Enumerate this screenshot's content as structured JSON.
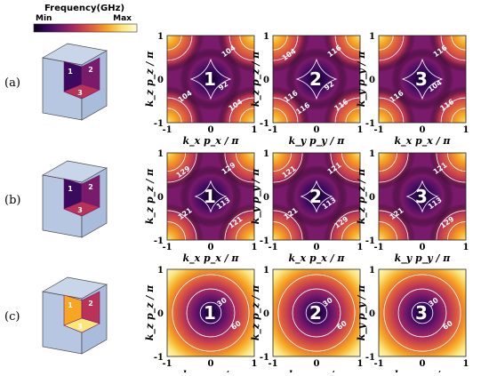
{
  "colorbar": {
    "title": "Frequency(GHz)",
    "min_label": "Min",
    "max_label": "Max",
    "stops": [
      "#0d0021",
      "#3a0a5e",
      "#7a1a6a",
      "#b83357",
      "#e2623b",
      "#f6a623",
      "#fbe67a",
      "#fffbd8"
    ]
  },
  "ticks": {
    "min": "-1",
    "mid": "0",
    "max": "1"
  },
  "rows": [
    {
      "label": "(a)",
      "contour_labels": [
        [
          "104",
          "92",
          "104",
          "104"
        ],
        [
          "116",
          "92",
          "116",
          "116",
          "104",
          "116"
        ],
        [
          "116",
          "104",
          "116",
          "116"
        ]
      ],
      "contour_levels": [
        0.45,
        0.62,
        0.78
      ],
      "pattern": "corners-bright",
      "axes": [
        {
          "x": "k_x p_x / π",
          "y": "k_z p_z / π"
        },
        {
          "x": "k_y p_y / π",
          "y": "k_z p_z / π"
        },
        {
          "x": "k_x p_x / π",
          "y": "k_y p_y / π"
        }
      ],
      "panel_ids": [
        "1",
        "2",
        "3"
      ],
      "cube_ids": [
        "1",
        "2",
        "3"
      ]
    },
    {
      "label": "(b)",
      "contour_labels": [
        [
          "129",
          "113",
          "121",
          "121",
          "129"
        ],
        [
          "121",
          "113",
          "121",
          "129",
          "121"
        ],
        [
          "121",
          "113",
          "121",
          "129"
        ]
      ],
      "contour_levels": [
        0.35,
        0.55,
        0.72
      ],
      "pattern": "corners-bright",
      "axes": [
        {
          "x": "k_x p_x / π",
          "y": "k_z p_z / π"
        },
        {
          "x": "k_x p_x / π",
          "y": "k_y p_y / π"
        },
        {
          "x": "k_y p_y / π",
          "y": "k_z p_z / π"
        }
      ],
      "panel_ids": [
        "1",
        "2",
        "3"
      ],
      "cube_ids": [
        "1",
        "2",
        "3"
      ]
    },
    {
      "label": "(c)",
      "contour_labels": [
        [
          "30",
          "60"
        ],
        [
          "30",
          "60"
        ],
        [
          "30",
          "60"
        ]
      ],
      "contour_levels": [
        0.22,
        0.5,
        0.8
      ],
      "pattern": "center-dark",
      "axes": [
        {
          "x": "k_x p_x / π",
          "y": "k_z p_z / π"
        },
        {
          "x": "k_y p_y / π",
          "y": "k_z p_z / π"
        },
        {
          "x": "k_x p_x / π",
          "y": "k_y p_y / π"
        }
      ],
      "panel_ids": [
        "1",
        "2",
        "3"
      ],
      "cube_ids": [
        "1",
        "2",
        "3"
      ]
    }
  ]
}
